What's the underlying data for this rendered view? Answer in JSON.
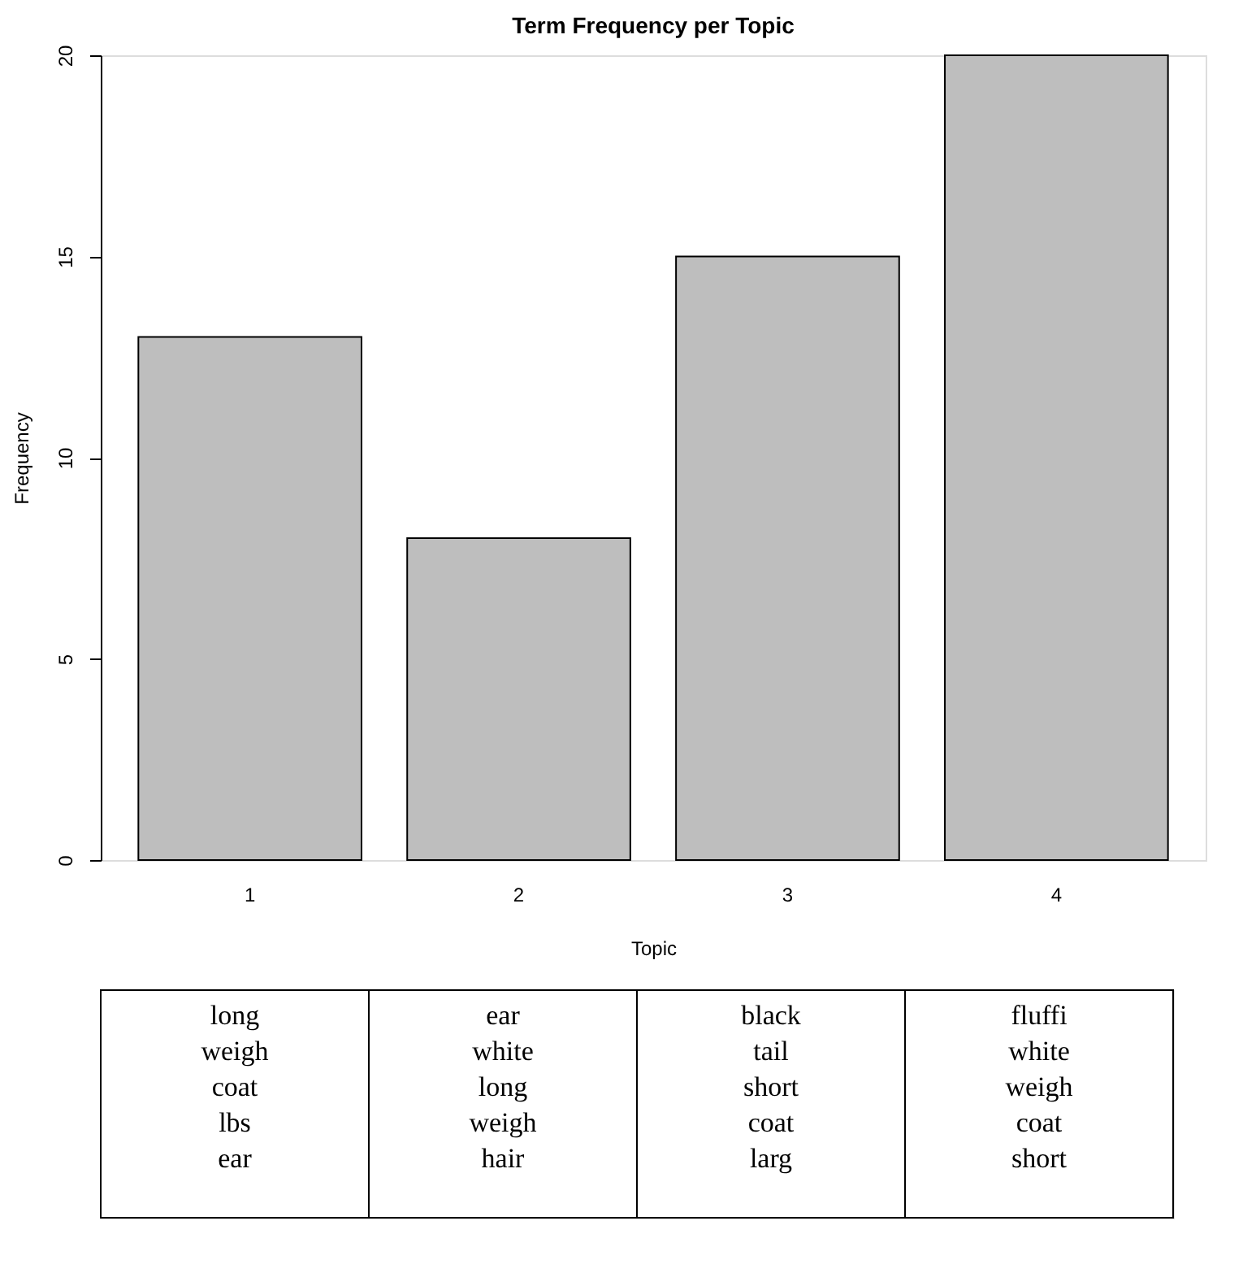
{
  "chart_data": {
    "type": "bar",
    "title": "Term Frequency per Topic",
    "xlabel": "Topic",
    "ylabel": "Frequency",
    "categories": [
      "1",
      "2",
      "3",
      "4"
    ],
    "values": [
      13,
      8,
      15,
      20
    ],
    "color": "#bebebe",
    "ylim": [
      0,
      20
    ],
    "yticks": [
      0,
      5,
      10,
      15,
      20
    ],
    "grid": false,
    "annotations": [
      "long\nweigh\ncoat\nlbs\near",
      "ear\nwhite\nlong\nweigh\nhair",
      "black\ntail\nshort\ncoat\nlarg",
      "fluffi\nwhite\nweigh\ncoat\nshort"
    ]
  }
}
